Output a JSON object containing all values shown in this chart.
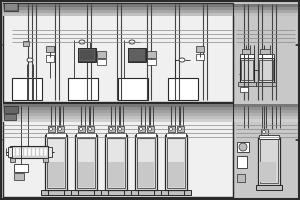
{
  "bg_color": "#c8c8c8",
  "panel_bg": "#f0f0f0",
  "white": "#ffffff",
  "line_color": "#2a2a2a",
  "dark_gray": "#444444",
  "mid_gray": "#888888",
  "light_gray": "#bbbbbb",
  "vessel_fill": "#e8e8e8",
  "stripe_colors": [
    "#999999",
    "#aaaaaa",
    "#bbbbbb",
    "#cccccc",
    "#dddddd"
  ],
  "figsize": [
    3.0,
    2.0
  ],
  "dpi": 100
}
